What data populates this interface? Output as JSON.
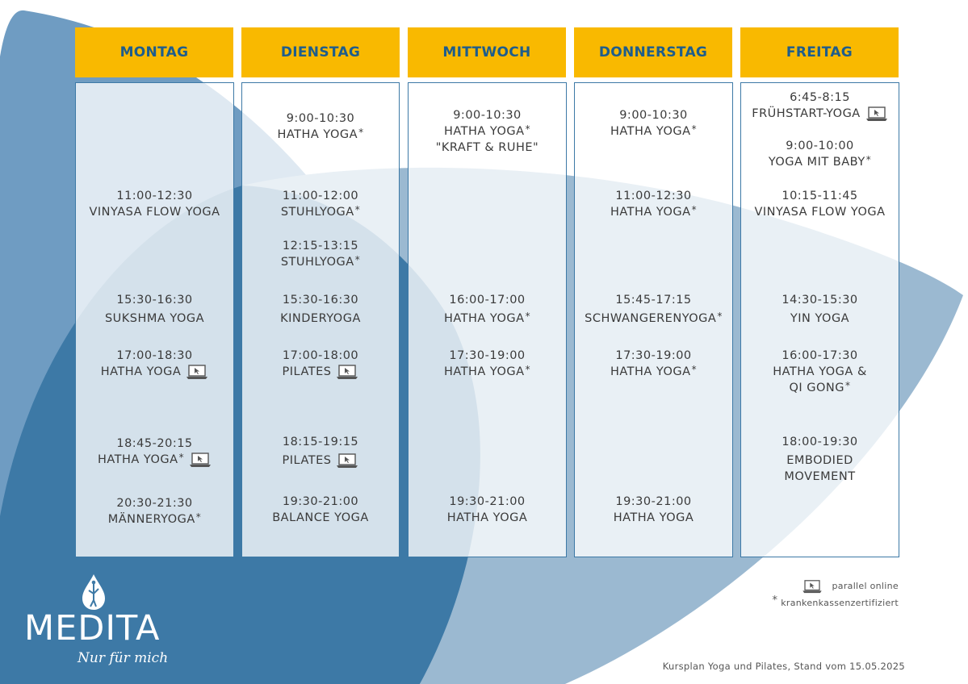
{
  "colors": {
    "header_bg": "#f9b900",
    "header_text": "#1e5d8c",
    "border": "#3d79a6",
    "blue_dark": "#3d79a6",
    "blue_light": "#9bb9d1"
  },
  "days": [
    {
      "label": "MONTAG",
      "slots": [
        {
          "time": "11:00-12:30",
          "name": "VINYASA FLOW YOGA",
          "star": false,
          "online": false
        },
        {
          "time": "15:30-16:30",
          "name": "SUKSHMA YOGA",
          "star": false,
          "online": false
        },
        {
          "time": "17:00-18:30",
          "name": "HATHA YOGA",
          "star": false,
          "online": true
        },
        {
          "time": "18:45-20:15",
          "name": "HATHA YOGA",
          "star": true,
          "online": true
        },
        {
          "time": "20:30-21:30",
          "name": "MÄNNERYOGA",
          "star": true,
          "online": false
        }
      ]
    },
    {
      "label": "DIENSTAG",
      "slots": [
        {
          "time": "9:00-10:30",
          "name": "HATHA YOGA",
          "star": true,
          "online": false
        },
        {
          "time": "11:00-12:00",
          "name": "STUHLYOGA",
          "star": true,
          "online": false
        },
        {
          "time": "12:15-13:15",
          "name": "STUHLYOGA",
          "star": true,
          "online": false
        },
        {
          "time": "15:30-16:30",
          "name": "KINDERYOGA",
          "star": false,
          "online": false
        },
        {
          "time": "17:00-18:00",
          "name": "PILATES",
          "star": false,
          "online": true
        },
        {
          "time": "18:15-19:15",
          "name": "PILATES",
          "star": false,
          "online": true
        },
        {
          "time": "19:30-21:00",
          "name": "BALANCE YOGA",
          "star": false,
          "online": false
        }
      ]
    },
    {
      "label": "MITTWOCH",
      "slots": [
        {
          "time": "9:00-10:30",
          "name": "HATHA YOGA",
          "star": true,
          "online": false,
          "extra": "\"KRAFT & RUHE\""
        },
        {
          "time": "16:00-17:00",
          "name": "HATHA YOGA",
          "star": true,
          "online": false
        },
        {
          "time": "17:30-19:00",
          "name": "HATHA YOGA",
          "star": true,
          "online": false
        },
        {
          "time": "19:30-21:00",
          "name": "HATHA YOGA",
          "star": false,
          "online": false
        }
      ]
    },
    {
      "label": "DONNERSTAG",
      "slots": [
        {
          "time": "9:00-10:30",
          "name": "HATHA YOGA",
          "star": true,
          "online": false
        },
        {
          "time": "11:00-12:30",
          "name": "HATHA YOGA",
          "star": true,
          "online": false
        },
        {
          "time": "15:45-17:15",
          "name": "SCHWANGERENYOGA",
          "star": true,
          "online": false
        },
        {
          "time": "17:30-19:00",
          "name": "HATHA YOGA",
          "star": true,
          "online": false
        },
        {
          "time": "19:30-21:00",
          "name": "HATHA YOGA",
          "star": false,
          "online": false
        }
      ]
    },
    {
      "label": "FREITAG",
      "slots": [
        {
          "time": "6:45-8:15",
          "name": "FRÜHSTART-YOGA",
          "star": false,
          "online": true
        },
        {
          "time": "9:00-10:00",
          "name": "YOGA MIT BABY",
          "star": true,
          "online": false
        },
        {
          "time": "10:15-11:45",
          "name": "VINYASA FLOW YOGA",
          "star": false,
          "online": false
        },
        {
          "time": "14:30-15:30",
          "name": "YIN YOGA",
          "star": false,
          "online": false
        },
        {
          "time": "16:00-17:30",
          "name": "HATHA YOGA &",
          "star": false,
          "online": false,
          "extra": "QI GONG",
          "extra_star": true
        },
        {
          "time": "18:00-19:30",
          "name": "EMBODIED",
          "star": false,
          "online": false,
          "extra": "MOVEMENT"
        }
      ]
    }
  ],
  "legend": {
    "online_label": "parallel online",
    "cert_label": "krankenkassenzertifiziert",
    "star_symbol": "*"
  },
  "footer": "Kursplan Yoga und Pilates, Stand vom 15.05.2025",
  "logo": {
    "brand": "MEDITA",
    "tagline": "Nur für mich"
  }
}
